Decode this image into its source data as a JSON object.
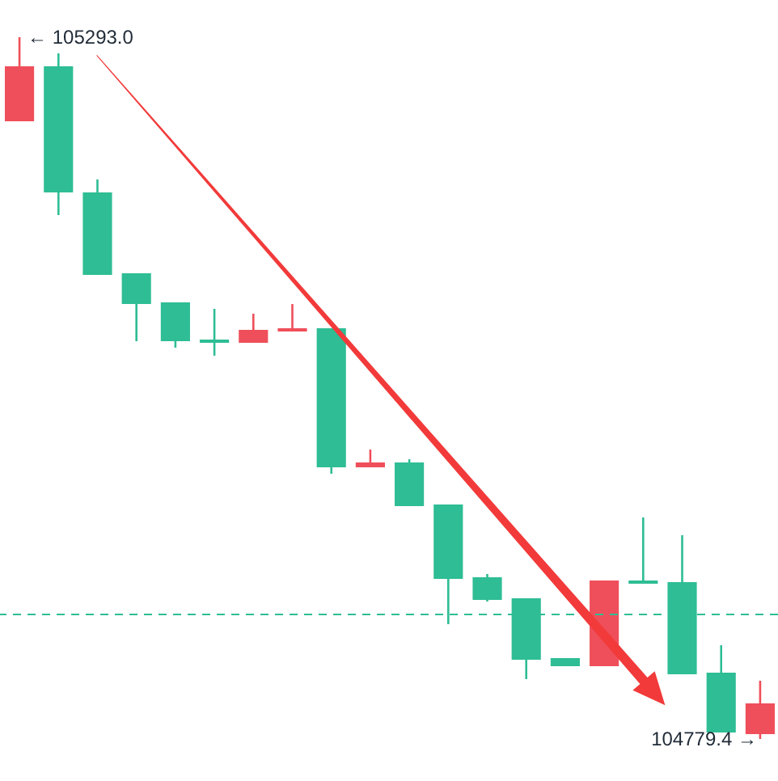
{
  "chart_data": {
    "type": "candlestick",
    "categories": [
      null,
      null,
      null,
      null,
      null,
      null,
      null,
      null,
      null,
      null,
      null,
      null,
      null,
      null,
      null,
      null,
      null,
      null,
      null,
      null
    ],
    "ohlc": [
      [
        105231.5,
        105293.0,
        105231.5,
        105271.7
      ],
      [
        105271.7,
        105281.2,
        105162.8,
        105179.4
      ],
      [
        105179.4,
        105188.9,
        105119.0,
        105119.0
      ],
      [
        105120.2,
        105120.2,
        105070.5,
        105097.7
      ],
      [
        105098.9,
        105098.9,
        105065.8,
        105070.5
      ],
      [
        105071.7,
        105094.2,
        105059.9,
        105069.3
      ],
      [
        105069.3,
        105090.6,
        105069.3,
        105078.8
      ],
      [
        105077.6,
        105097.7,
        105077.6,
        105080.0
      ],
      [
        105080.0,
        105080.0,
        104973.5,
        104978.2
      ],
      [
        104978.2,
        104991.2,
        104978.2,
        104981.8
      ],
      [
        104981.8,
        104984.1,
        104949.8,
        104949.8
      ],
      [
        104951.0,
        104951.0,
        104863.4,
        104896.6
      ],
      [
        104897.7,
        104900.1,
        104880.0,
        104881.2
      ],
      [
        104882.4,
        104882.4,
        104823.2,
        104837.4
      ],
      [
        104838.6,
        104838.6,
        104832.7,
        104832.7
      ],
      [
        104832.7,
        104895.4,
        104832.7,
        104895.4
      ],
      [
        104895.4,
        104941.5,
        104893.0,
        104893.0
      ],
      [
        104894.2,
        104928.5,
        104826.7,
        104826.7
      ],
      [
        104827.9,
        104848.0,
        104784.1,
        104784.1
      ],
      [
        104782.9,
        104822.0,
        104779.4,
        104805.4
      ]
    ],
    "colors": [
      "#ef4f5a",
      "#2ebd94",
      "#2ebd94",
      "#2ebd94",
      "#2ebd94",
      "#2ebd94",
      "#ef4f5a",
      "#ef4f5a",
      "#2ebd94",
      "#ef4f5a",
      "#2ebd94",
      "#2ebd94",
      "#2ebd94",
      "#2ebd94",
      "#2ebd94",
      "#ef4f5a",
      "#2ebd94",
      "#2ebd94",
      "#2ebd94",
      "#ef4f5a"
    ],
    "ref_lines": [
      {
        "axis": "y",
        "value": 104870.5,
        "color": "#2ebd94",
        "line_style": "dashed"
      }
    ],
    "annotations": [
      "← 105293.0",
      "104779.4 →"
    ]
  }
}
